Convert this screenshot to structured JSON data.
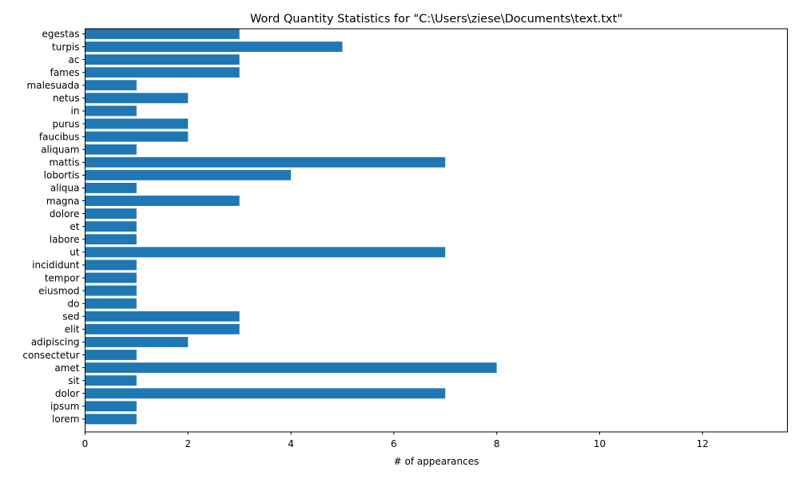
{
  "chart_data": {
    "type": "bar",
    "orientation": "horizontal",
    "title": "Word Quantity Statistics for \"C:\\Users\\ziese\\Documents\\text.txt\"",
    "xlabel": "# of appearances",
    "ylabel": "",
    "xlim": [
      0,
      13.65
    ],
    "xticks": [
      0,
      2,
      4,
      6,
      8,
      10,
      12
    ],
    "grid": false,
    "bar_color": "#1f77b4",
    "categories": [
      "lorem",
      "ipsum",
      "dolor",
      "sit",
      "amet",
      "consectetur",
      "adipiscing",
      "elit",
      "sed",
      "do",
      "eiusmod",
      "tempor",
      "incididunt",
      "ut",
      "labore",
      "et",
      "dolore",
      "magna",
      "aliqua",
      "lobortis",
      "mattis",
      "aliquam",
      "faucibus",
      "purus",
      "in",
      "netus",
      "malesuada",
      "fames",
      "ac",
      "turpis",
      "egestas"
    ],
    "values": [
      1,
      1,
      7,
      1,
      8,
      1,
      2,
      3,
      3,
      1,
      1,
      1,
      1,
      7,
      1,
      1,
      1,
      3,
      1,
      4,
      7,
      1,
      2,
      2,
      1,
      2,
      1,
      3,
      3,
      5,
      3
    ]
  }
}
